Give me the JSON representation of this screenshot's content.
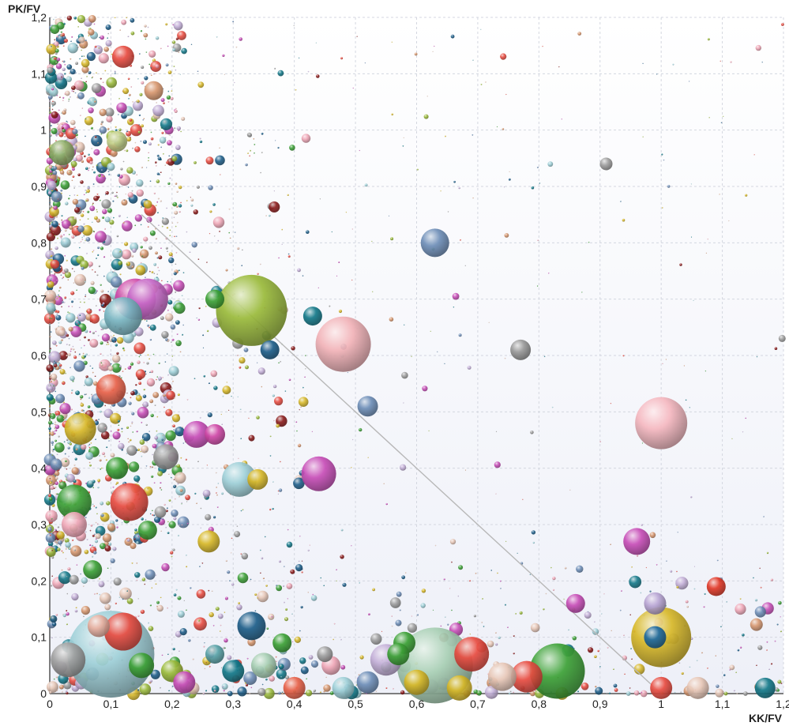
{
  "chart_data": {
    "type": "scatter",
    "subtype": "bubble",
    "xlabel": "KK/FV",
    "ylabel": "PK/FV",
    "xlim": [
      0,
      1.2
    ],
    "ylim": [
      0,
      1.2
    ],
    "x_ticks": [
      "0",
      "0,1",
      "0,2",
      "0,3",
      "0,4",
      "0,5",
      "0,6",
      "0,7",
      "0,8",
      "0,9",
      "1",
      "1,1",
      "1,2"
    ],
    "y_ticks": [
      "0",
      "0,1",
      "0,2",
      "0,3",
      "0,4",
      "0,5",
      "0,6",
      "0,7",
      "0,8",
      "0,9",
      "1",
      "1,1",
      "1,2"
    ],
    "grid": true,
    "reference_line": {
      "from": [
        0.15,
        0.85
      ],
      "to": [
        1.0,
        0.0
      ]
    },
    "series": [
      {
        "points": [
          {
            "x": 0.33,
            "y": 0.68,
            "size": 45,
            "color": "#9bbb3c"
          },
          {
            "x": 0.48,
            "y": 0.62,
            "size": 35,
            "color": "#f2b3b8"
          },
          {
            "x": 1.0,
            "y": 0.48,
            "size": 33,
            "color": "#f5b8c0"
          },
          {
            "x": 0.1,
            "y": 0.07,
            "size": 55,
            "color": "#9fd0d8"
          },
          {
            "x": 0.63,
            "y": 0.05,
            "size": 48,
            "color": "#a8cfb4"
          },
          {
            "x": 1.0,
            "y": 0.1,
            "size": 38,
            "color": "#d8b92a"
          },
          {
            "x": 0.83,
            "y": 0.04,
            "size": 35,
            "color": "#3ea238"
          },
          {
            "x": 0.63,
            "y": 0.8,
            "size": 18,
            "color": "#6f8fb8"
          },
          {
            "x": 0.44,
            "y": 0.39,
            "size": 22,
            "color": "#c84fb8"
          },
          {
            "x": 0.96,
            "y": 0.27,
            "size": 17,
            "color": "#c84fb8"
          },
          {
            "x": 0.77,
            "y": 0.61,
            "size": 13,
            "color": "#999999"
          },
          {
            "x": 0.99,
            "y": 0.16,
            "size": 14,
            "color": "#b9a6d4"
          },
          {
            "x": 0.99,
            "y": 0.1,
            "size": 14,
            "color": "#1f6aa0"
          },
          {
            "x": 0.69,
            "y": 0.07,
            "size": 22,
            "color": "#e84d42"
          },
          {
            "x": 0.33,
            "y": 0.12,
            "size": 18,
            "color": "#1f5f8a"
          },
          {
            "x": 0.52,
            "y": 0.51,
            "size": 13,
            "color": "#6f8fb8"
          },
          {
            "x": 0.31,
            "y": 0.38,
            "size": 22,
            "color": "#9fd0d8"
          },
          {
            "x": 0.14,
            "y": 0.7,
            "size": 26,
            "color": "#d04aa8"
          },
          {
            "x": 0.16,
            "y": 0.7,
            "size": 26,
            "color": "#c76ac8"
          },
          {
            "x": 0.12,
            "y": 0.67,
            "size": 24,
            "color": "#7ab6c2"
          },
          {
            "x": 0.13,
            "y": 0.34,
            "size": 24,
            "color": "#e84d42"
          },
          {
            "x": 0.04,
            "y": 0.34,
            "size": 22,
            "color": "#3ea238"
          },
          {
            "x": 0.03,
            "y": 0.06,
            "size": 22,
            "color": "#a0a0a0"
          },
          {
            "x": 0.04,
            "y": 0.3,
            "size": 16,
            "color": "#f0a8b8"
          },
          {
            "x": 0.05,
            "y": 0.47,
            "size": 20,
            "color": "#d8b92a"
          },
          {
            "x": 0.1,
            "y": 0.54,
            "size": 19,
            "color": "#e8624a"
          },
          {
            "x": 0.19,
            "y": 0.42,
            "size": 16,
            "color": "#9a9a9a"
          },
          {
            "x": 0.24,
            "y": 0.46,
            "size": 17,
            "color": "#c84fb8"
          },
          {
            "x": 0.27,
            "y": 0.46,
            "size": 13,
            "color": "#d04aa8"
          },
          {
            "x": 0.11,
            "y": 0.4,
            "size": 14,
            "color": "#3ea238"
          },
          {
            "x": 0.12,
            "y": 1.13,
            "size": 14,
            "color": "#e84d42"
          },
          {
            "x": 0.17,
            "y": 1.07,
            "size": 12,
            "color": "#d89870"
          },
          {
            "x": 0.11,
            "y": 0.98,
            "size": 13,
            "color": "#c4d088"
          },
          {
            "x": 0.02,
            "y": 0.96,
            "size": 16,
            "color": "#8fae6a"
          },
          {
            "x": 0.43,
            "y": 0.67,
            "size": 12,
            "color": "#157a8a"
          },
          {
            "x": 0.36,
            "y": 0.61,
            "size": 12,
            "color": "#1f5f8a"
          },
          {
            "x": 0.91,
            "y": 0.94,
            "size": 8,
            "color": "#a0a0a0"
          },
          {
            "x": 1.09,
            "y": 0.19,
            "size": 12,
            "color": "#e23a2a"
          },
          {
            "x": 0.86,
            "y": 0.16,
            "size": 12,
            "color": "#c84fb8"
          },
          {
            "x": 0.58,
            "y": 0.09,
            "size": 14,
            "color": "#3ea238"
          },
          {
            "x": 0.57,
            "y": 0.07,
            "size": 14,
            "color": "#3ea238"
          },
          {
            "x": 0.55,
            "y": 0.06,
            "size": 20,
            "color": "#c4b0d8"
          },
          {
            "x": 0.38,
            "y": 0.09,
            "size": 12,
            "color": "#3ea238"
          },
          {
            "x": 0.45,
            "y": 0.07,
            "size": 10,
            "color": "#a0a0a0"
          },
          {
            "x": 0.27,
            "y": 0.07,
            "size": 12,
            "color": "#5aa3a8"
          },
          {
            "x": 0.74,
            "y": 0.03,
            "size": 18,
            "color": "#e8c8b8"
          },
          {
            "x": 0.78,
            "y": 0.03,
            "size": 20,
            "color": "#e84d42"
          },
          {
            "x": 0.46,
            "y": 0.05,
            "size": 12,
            "color": "#f0a8b8"
          },
          {
            "x": 0.26,
            "y": 0.27,
            "size": 14,
            "color": "#d8b92a"
          },
          {
            "x": 0.34,
            "y": 0.38,
            "size": 13,
            "color": "#d8b92a"
          },
          {
            "x": 0.27,
            "y": 0.7,
            "size": 12,
            "color": "#3ea238"
          },
          {
            "x": 0.12,
            "y": 0.11,
            "size": 24,
            "color": "#e84d42"
          },
          {
            "x": 0.08,
            "y": 0.12,
            "size": 14,
            "color": "#e8b0a0"
          },
          {
            "x": 0.07,
            "y": 0.22,
            "size": 12,
            "color": "#3ea238"
          },
          {
            "x": 0.16,
            "y": 0.29,
            "size": 12,
            "color": "#3ea238"
          },
          {
            "x": 0.15,
            "y": 0.05,
            "size": 16,
            "color": "#3ea238"
          },
          {
            "x": 0.35,
            "y": 0.05,
            "size": 16,
            "color": "#a8cfb4"
          },
          {
            "x": 0.2,
            "y": 0.04,
            "size": 14,
            "color": "#9bbb3c"
          },
          {
            "x": 0.3,
            "y": 0.04,
            "size": 14,
            "color": "#157a8a"
          },
          {
            "x": 1.06,
            "y": 0.01,
            "size": 14,
            "color": "#e8c8b8"
          },
          {
            "x": 1.17,
            "y": 0.01,
            "size": 13,
            "color": "#157a8a"
          },
          {
            "x": 1.0,
            "y": 0.01,
            "size": 14,
            "color": "#e84d42"
          },
          {
            "x": 0.67,
            "y": 0.01,
            "size": 16,
            "color": "#d8b92a"
          },
          {
            "x": 0.6,
            "y": 0.02,
            "size": 16,
            "color": "#d8b92a"
          },
          {
            "x": 0.52,
            "y": 0.02,
            "size": 14,
            "color": "#6f8fb8"
          },
          {
            "x": 0.22,
            "y": 0.02,
            "size": 14,
            "color": "#c84fb8"
          },
          {
            "x": 0.4,
            "y": 0.01,
            "size": 14,
            "color": "#e8624a"
          },
          {
            "x": 0.48,
            "y": 0.01,
            "size": 14,
            "color": "#9fd0d8"
          }
        ]
      }
    ]
  }
}
